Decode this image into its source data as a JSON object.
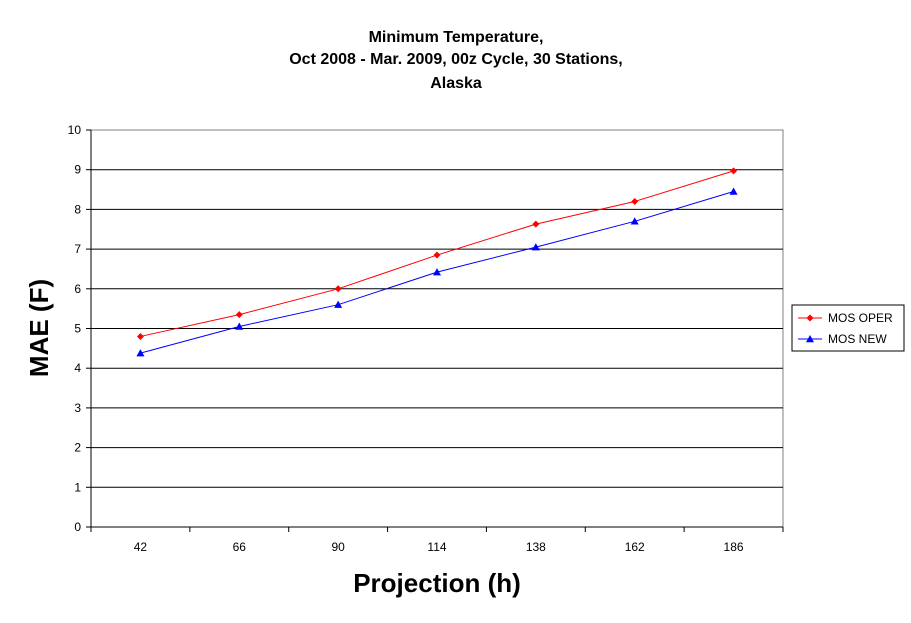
{
  "chart_data": {
    "type": "line",
    "title_lines": [
      "Minimum Temperature,",
      "Oct 2008 - Mar. 2009, 00z Cycle, 30 Stations,",
      "Alaska"
    ],
    "xlabel": "Projection (h)",
    "ylabel": "MAE (F)",
    "categories": [
      "42",
      "66",
      "90",
      "114",
      "138",
      "162",
      "186"
    ],
    "ylim": [
      0,
      10
    ],
    "yticks": [
      "0",
      "1",
      "2",
      "3",
      "4",
      "5",
      "6",
      "7",
      "8",
      "9",
      "10"
    ],
    "grid": "horizontal",
    "legend_position": "right",
    "series": [
      {
        "name": "MOS OPER",
        "color": "#ff0000",
        "marker": "diamond",
        "values": [
          4.8,
          5.35,
          6.0,
          6.85,
          7.63,
          8.2,
          8.97
        ]
      },
      {
        "name": "MOS NEW",
        "color": "#0000ff",
        "marker": "triangle",
        "values": [
          4.38,
          5.05,
          5.6,
          6.42,
          7.05,
          7.7,
          8.45
        ]
      }
    ]
  }
}
